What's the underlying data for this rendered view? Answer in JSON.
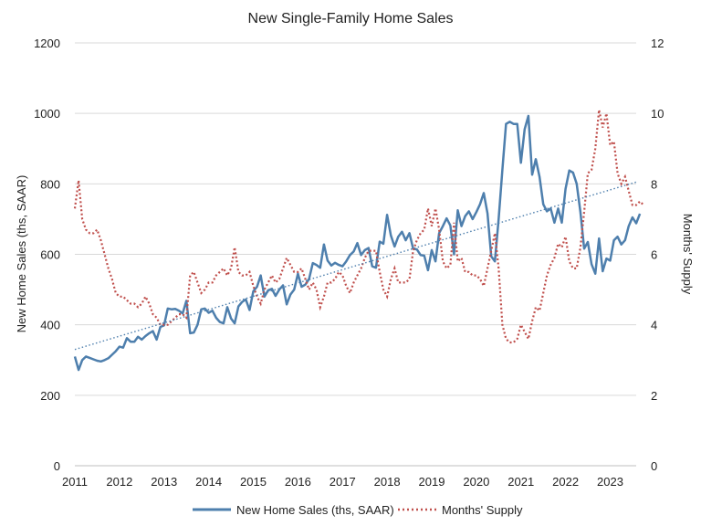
{
  "chart_data": {
    "type": "line",
    "title": "New Single-Family Home Sales",
    "ylabel": "New Home Sales (ths, SAAR)",
    "y2label": "Months' Supply",
    "ylim": [
      0,
      1200
    ],
    "y2lim": [
      0,
      12
    ],
    "xlim": [
      2011.0,
      2023.583
    ],
    "y_ticks": [
      0,
      200,
      400,
      600,
      800,
      1000,
      1200
    ],
    "y2_ticks": [
      0,
      2,
      4,
      6,
      8,
      10,
      12
    ],
    "x_ticks": [
      2011,
      2012,
      2013,
      2014,
      2015,
      2016,
      2017,
      2018,
      2019,
      2020,
      2021,
      2022,
      2023
    ],
    "grid": "horizontal",
    "legend": "bottom",
    "colors": {
      "sales": "#4e7fad",
      "supply": "#c0504d",
      "trend": "#4e7fad",
      "grid": "#d9d9d9"
    },
    "series": [
      {
        "name": "New Home Sales (ths, SAAR)",
        "axis": "left",
        "style": "solid",
        "start": 2011.0,
        "step": 0.08333,
        "values": [
          310,
          272,
          300,
          310,
          306,
          302,
          298,
          296,
          300,
          305,
          315,
          325,
          338,
          335,
          362,
          352,
          352,
          366,
          358,
          368,
          376,
          382,
          358,
          394,
          398,
          446,
          444,
          445,
          440,
          432,
          468,
          376,
          378,
          400,
          444,
          446,
          434,
          440,
          420,
          408,
          404,
          450,
          418,
          404,
          452,
          465,
          472,
          442,
          495,
          508,
          540,
          480,
          498,
          502,
          482,
          500,
          512,
          458,
          486,
          500,
          545,
          508,
          514,
          530,
          575,
          570,
          562,
          628,
          582,
          568,
          576,
          570,
          566,
          580,
          598,
          608,
          632,
          598,
          612,
          618,
          566,
          562,
          636,
          630,
          712,
          654,
          622,
          650,
          664,
          640,
          660,
          616,
          614,
          598,
          596,
          555,
          612,
          580,
          660,
          680,
          702,
          682,
          600,
          725,
          680,
          708,
          722,
          700,
          720,
          742,
          774,
          716,
          594,
          580,
          700,
          840,
          970,
          976,
          970,
          970,
          860,
          955,
          993,
          826,
          870,
          820,
          742,
          722,
          730,
          690,
          730,
          690,
          786,
          838,
          832,
          800,
          720,
          616,
          635,
          572,
          545,
          645,
          552,
          588,
          582,
          640,
          650,
          628,
          640,
          680,
          705,
          688,
          715
        ]
      },
      {
        "name": "Months' Supply",
        "axis": "right",
        "style": "dotted",
        "start": 2011.0,
        "step": 0.08333,
        "values": [
          7.3,
          8.1,
          7.0,
          6.7,
          6.6,
          6.6,
          6.7,
          6.4,
          6.0,
          5.6,
          5.3,
          4.9,
          4.8,
          4.8,
          4.7,
          4.6,
          4.6,
          4.5,
          4.6,
          4.8,
          4.6,
          4.3,
          4.2,
          4.0,
          4.0,
          4.0,
          4.1,
          4.2,
          4.3,
          4.3,
          4.2,
          5.4,
          5.5,
          5.2,
          4.9,
          5.0,
          5.2,
          5.2,
          5.4,
          5.5,
          5.6,
          5.4,
          5.6,
          6.2,
          5.5,
          5.4,
          5.4,
          5.5,
          5.1,
          4.8,
          4.6,
          5.0,
          5.2,
          5.4,
          5.2,
          5.3,
          5.6,
          5.9,
          5.7,
          5.5,
          5.5,
          5.6,
          5.3,
          5.0,
          5.2,
          5.0,
          4.5,
          4.8,
          5.2,
          5.2,
          5.3,
          5.5,
          5.4,
          5.1,
          4.9,
          5.2,
          5.4,
          5.6,
          5.9,
          6.1,
          6.1,
          6.1,
          5.5,
          5.0,
          4.8,
          5.3,
          5.6,
          5.2,
          5.2,
          5.2,
          5.3,
          6.1,
          6.4,
          6.6,
          6.7,
          7.3,
          6.8,
          7.3,
          6.7,
          5.8,
          5.6,
          5.7,
          6.9,
          5.8,
          5.9,
          5.5,
          5.5,
          5.4,
          5.4,
          5.3,
          5.1,
          5.6,
          6.1,
          6.6,
          5.6,
          4.0,
          3.6,
          3.5,
          3.5,
          3.6,
          4.0,
          3.8,
          3.6,
          4.1,
          4.5,
          4.4,
          4.9,
          5.4,
          5.7,
          5.9,
          6.3,
          6.2,
          6.5,
          5.8,
          5.6,
          5.6,
          6.2,
          7.2,
          8.3,
          8.4,
          9.0,
          10.1,
          9.6,
          10.0,
          9.1,
          9.2,
          8.3,
          8.0,
          8.2,
          7.8,
          7.4,
          7.4,
          7.5,
          7.4
        ]
      },
      {
        "name": "",
        "axis": "left",
        "style": "dotted-trend",
        "start": 2011.0,
        "end": 2023.583,
        "values": [
          330,
          805
        ]
      }
    ]
  },
  "legend": {
    "sales_label": "New Home Sales (ths, SAAR)",
    "supply_label": "Months' Supply"
  }
}
